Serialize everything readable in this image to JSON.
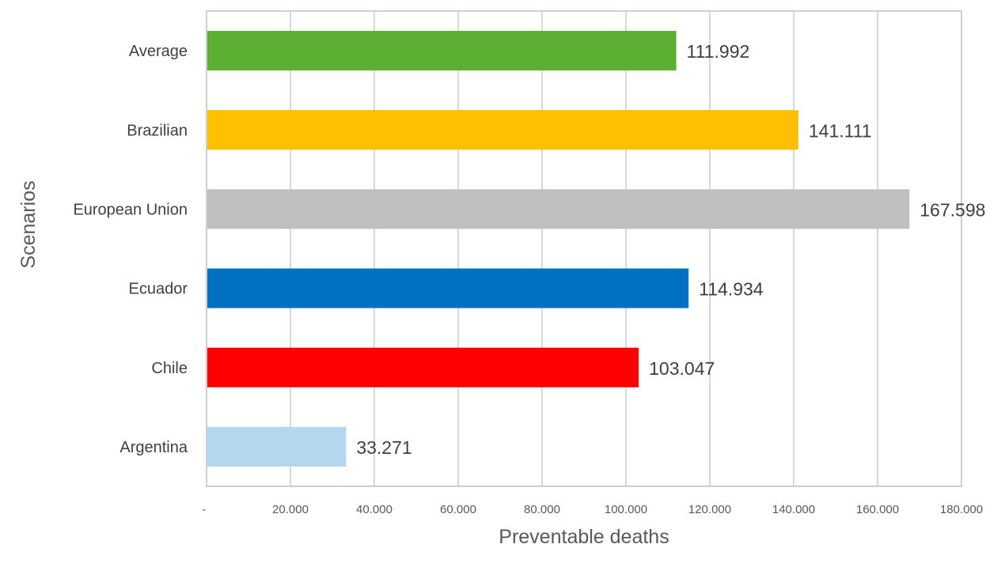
{
  "chart_data": {
    "type": "bar",
    "orientation": "horizontal",
    "xlabel": "Preventable deaths",
    "ylabel": "Scenarios",
    "xlim": [
      0,
      180000
    ],
    "x_ticks": [
      0,
      20000,
      40000,
      60000,
      80000,
      100000,
      120000,
      140000,
      160000,
      180000
    ],
    "x_tick_labels": [
      "-",
      "20.000",
      "40.000",
      "60.000",
      "80.000",
      "100.000",
      "120.000",
      "140.000",
      "160.000",
      "180.000"
    ],
    "grid": "vertical gridlines",
    "legend": "none",
    "categories": [
      "Argentina",
      "Chile",
      "Ecuador",
      "European Union",
      "Brazilian",
      "Average"
    ],
    "values": [
      33271,
      103047,
      114934,
      167598,
      141111,
      111992
    ],
    "data_labels": [
      "33.271",
      "103.047",
      "114.934",
      "167.598",
      "141.111",
      "111.992"
    ],
    "colors": [
      "#b4d7ef",
      "#ff0000",
      "#0070c0",
      "#bfbfbf",
      "#ffc000",
      "#5daf34"
    ]
  }
}
